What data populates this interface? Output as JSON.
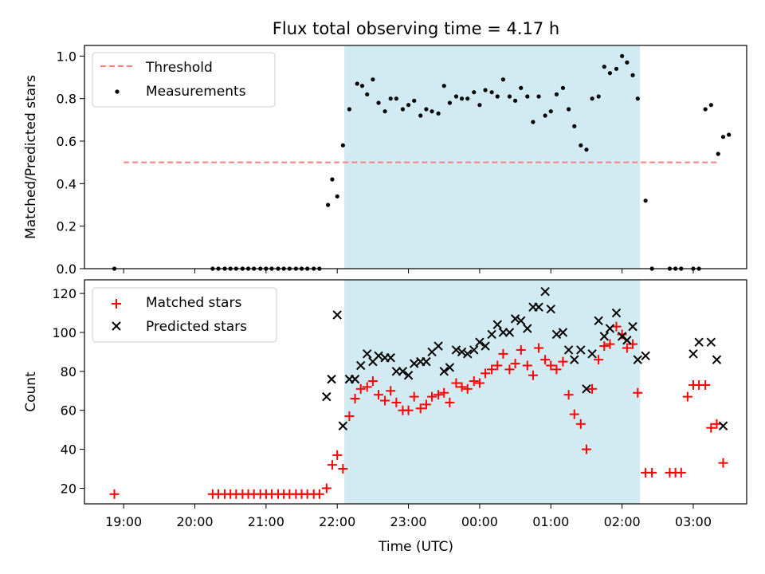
{
  "title": "Flux total observing time = 4.17 h",
  "xlabel": "Time (UTC)",
  "colors": {
    "shade": "#add8e6",
    "threshold": "#ff7f7f",
    "measurements": "#000000",
    "matched": "#ff0000",
    "predicted": "#000000"
  },
  "chart_data": [
    {
      "type": "scatter",
      "ylabel": "Matched/Predicted stars",
      "ylim": [
        0,
        1.05
      ],
      "xlim": [
        18.45,
        27.75
      ],
      "x_ticks": [
        19,
        20,
        21,
        22,
        23,
        24,
        25,
        26,
        27
      ],
      "y_ticks": [
        0.0,
        0.2,
        0.4,
        0.6,
        0.8,
        1.0
      ],
      "y_tick_labels": [
        "0.0",
        "0.2",
        "0.4",
        "0.6",
        "0.8",
        "1.0"
      ],
      "shaded_region": [
        22.1,
        26.25
      ],
      "legend": {
        "position": "top-left",
        "threshold_label": "Threshold",
        "measurements_label": "Measurements"
      },
      "threshold": {
        "value": 0.5,
        "x": [
          19.0,
          27.35
        ]
      },
      "series": [
        {
          "name": "Measurements",
          "points": [
            [
              18.87,
              0.0
            ],
            [
              20.25,
              0.0
            ],
            [
              20.33,
              0.0
            ],
            [
              20.42,
              0.0
            ],
            [
              20.5,
              0.0
            ],
            [
              20.58,
              0.0
            ],
            [
              20.67,
              0.0
            ],
            [
              20.75,
              0.0
            ],
            [
              20.83,
              0.0
            ],
            [
              20.92,
              0.0
            ],
            [
              21.0,
              0.0
            ],
            [
              21.08,
              0.0
            ],
            [
              21.17,
              0.0
            ],
            [
              21.25,
              0.0
            ],
            [
              21.33,
              0.0
            ],
            [
              21.42,
              0.0
            ],
            [
              21.5,
              0.0
            ],
            [
              21.58,
              0.0
            ],
            [
              21.67,
              0.0
            ],
            [
              21.75,
              0.0
            ],
            [
              21.87,
              0.3
            ],
            [
              21.93,
              0.42
            ],
            [
              22.0,
              0.34
            ],
            [
              22.08,
              0.58
            ],
            [
              22.17,
              0.75
            ],
            [
              22.28,
              0.87
            ],
            [
              22.35,
              0.86
            ],
            [
              22.42,
              0.82
            ],
            [
              22.5,
              0.89
            ],
            [
              22.58,
              0.78
            ],
            [
              22.67,
              0.74
            ],
            [
              22.75,
              0.8
            ],
            [
              22.83,
              0.8
            ],
            [
              22.92,
              0.75
            ],
            [
              23.0,
              0.77
            ],
            [
              23.08,
              0.79
            ],
            [
              23.17,
              0.72
            ],
            [
              23.25,
              0.75
            ],
            [
              23.33,
              0.74
            ],
            [
              23.42,
              0.73
            ],
            [
              23.5,
              0.86
            ],
            [
              23.58,
              0.78
            ],
            [
              23.67,
              0.81
            ],
            [
              23.75,
              0.8
            ],
            [
              23.83,
              0.8
            ],
            [
              23.92,
              0.83
            ],
            [
              24.0,
              0.77
            ],
            [
              24.08,
              0.84
            ],
            [
              24.17,
              0.83
            ],
            [
              24.25,
              0.81
            ],
            [
              24.33,
              0.89
            ],
            [
              24.42,
              0.81
            ],
            [
              24.5,
              0.79
            ],
            [
              24.58,
              0.85
            ],
            [
              24.67,
              0.81
            ],
            [
              24.75,
              0.69
            ],
            [
              24.83,
              0.81
            ],
            [
              24.92,
              0.72
            ],
            [
              25.0,
              0.74
            ],
            [
              25.08,
              0.82
            ],
            [
              25.17,
              0.85
            ],
            [
              25.25,
              0.75
            ],
            [
              25.33,
              0.67
            ],
            [
              25.42,
              0.58
            ],
            [
              25.5,
              0.56
            ],
            [
              25.58,
              0.8
            ],
            [
              25.67,
              0.81
            ],
            [
              25.75,
              0.95
            ],
            [
              25.83,
              0.92
            ],
            [
              25.92,
              0.94
            ],
            [
              26.0,
              1.0
            ],
            [
              26.07,
              0.97
            ],
            [
              26.15,
              0.91
            ],
            [
              26.22,
              0.8
            ],
            [
              26.33,
              0.32
            ],
            [
              26.42,
              0.0
            ],
            [
              26.67,
              0.0
            ],
            [
              26.75,
              0.0
            ],
            [
              26.83,
              0.0
            ],
            [
              27.0,
              0.0
            ],
            [
              27.08,
              0.0
            ],
            [
              27.17,
              0.75
            ],
            [
              27.25,
              0.77
            ],
            [
              27.35,
              0.54
            ],
            [
              27.42,
              0.62
            ],
            [
              27.5,
              0.63
            ]
          ]
        }
      ]
    },
    {
      "type": "scatter",
      "ylabel": "Count",
      "ylim": [
        12,
        127
      ],
      "xlim": [
        18.45,
        27.75
      ],
      "x_ticks": [
        19,
        20,
        21,
        22,
        23,
        24,
        25,
        26,
        27
      ],
      "x_tick_labels": [
        "19:00",
        "20:00",
        "21:00",
        "22:00",
        "23:00",
        "00:00",
        "01:00",
        "02:00",
        "03:00"
      ],
      "y_ticks": [
        20,
        40,
        60,
        80,
        100,
        120
      ],
      "y_tick_labels": [
        "20",
        "40",
        "60",
        "80",
        "100",
        "120"
      ],
      "shaded_region": [
        22.1,
        26.25
      ],
      "legend": {
        "position": "top-left",
        "matched_label": "Matched stars",
        "predicted_label": "Predicted stars"
      },
      "series": [
        {
          "name": "Matched stars",
          "marker": "plus",
          "points": [
            [
              18.87,
              17
            ],
            [
              20.25,
              17
            ],
            [
              20.33,
              17
            ],
            [
              20.42,
              17
            ],
            [
              20.5,
              17
            ],
            [
              20.58,
              17
            ],
            [
              20.67,
              17
            ],
            [
              20.75,
              17
            ],
            [
              20.83,
              17
            ],
            [
              20.92,
              17
            ],
            [
              21.0,
              17
            ],
            [
              21.08,
              17
            ],
            [
              21.17,
              17
            ],
            [
              21.25,
              17
            ],
            [
              21.33,
              17
            ],
            [
              21.42,
              17
            ],
            [
              21.5,
              17
            ],
            [
              21.58,
              17
            ],
            [
              21.67,
              17
            ],
            [
              21.75,
              17
            ],
            [
              21.85,
              20
            ],
            [
              21.93,
              32
            ],
            [
              22.0,
              37
            ],
            [
              22.08,
              30
            ],
            [
              22.17,
              57
            ],
            [
              22.25,
              66
            ],
            [
              22.33,
              71
            ],
            [
              22.42,
              72
            ],
            [
              22.5,
              75
            ],
            [
              22.58,
              68
            ],
            [
              22.67,
              65
            ],
            [
              22.75,
              70
            ],
            [
              22.83,
              64
            ],
            [
              22.92,
              60
            ],
            [
              23.0,
              60
            ],
            [
              23.08,
              67
            ],
            [
              23.17,
              61
            ],
            [
              23.25,
              63
            ],
            [
              23.33,
              67
            ],
            [
              23.42,
              68
            ],
            [
              23.5,
              69
            ],
            [
              23.58,
              64
            ],
            [
              23.67,
              74
            ],
            [
              23.75,
              72
            ],
            [
              23.83,
              71
            ],
            [
              23.92,
              75
            ],
            [
              24.0,
              74
            ],
            [
              24.08,
              79
            ],
            [
              24.17,
              81
            ],
            [
              24.25,
              83
            ],
            [
              24.33,
              89
            ],
            [
              24.42,
              81
            ],
            [
              24.5,
              84
            ],
            [
              24.58,
              91
            ],
            [
              24.67,
              83
            ],
            [
              24.75,
              78
            ],
            [
              24.83,
              92
            ],
            [
              24.92,
              86
            ],
            [
              25.0,
              83
            ],
            [
              25.08,
              81
            ],
            [
              25.17,
              85
            ],
            [
              25.25,
              68
            ],
            [
              25.33,
              58
            ],
            [
              25.42,
              53
            ],
            [
              25.5,
              40
            ],
            [
              25.58,
              71
            ],
            [
              25.67,
              86
            ],
            [
              25.75,
              93
            ],
            [
              25.83,
              94
            ],
            [
              25.92,
              103
            ],
            [
              26.0,
              99
            ],
            [
              26.07,
              92
            ],
            [
              26.15,
              94
            ],
            [
              26.22,
              69
            ],
            [
              26.33,
              28
            ],
            [
              26.42,
              28
            ],
            [
              26.67,
              28
            ],
            [
              26.75,
              28
            ],
            [
              26.83,
              28
            ],
            [
              26.92,
              67
            ],
            [
              27.0,
              73
            ],
            [
              27.08,
              73
            ],
            [
              27.17,
              73
            ],
            [
              27.25,
              51
            ],
            [
              27.33,
              53
            ],
            [
              27.42,
              33
            ]
          ]
        },
        {
          "name": "Predicted stars",
          "marker": "x",
          "points": [
            [
              21.85,
              67
            ],
            [
              21.92,
              76
            ],
            [
              22.0,
              109
            ],
            [
              22.08,
              52
            ],
            [
              22.17,
              76
            ],
            [
              22.25,
              76
            ],
            [
              22.33,
              83
            ],
            [
              22.42,
              89
            ],
            [
              22.5,
              85
            ],
            [
              22.58,
              88
            ],
            [
              22.67,
              87
            ],
            [
              22.75,
              87
            ],
            [
              22.83,
              80
            ],
            [
              22.92,
              80
            ],
            [
              23.0,
              78
            ],
            [
              23.08,
              84
            ],
            [
              23.17,
              85
            ],
            [
              23.25,
              85
            ],
            [
              23.33,
              90
            ],
            [
              23.42,
              93
            ],
            [
              23.5,
              80
            ],
            [
              23.58,
              82
            ],
            [
              23.67,
              91
            ],
            [
              23.75,
              90
            ],
            [
              23.83,
              89
            ],
            [
              23.92,
              91
            ],
            [
              24.0,
              95
            ],
            [
              24.08,
              93
            ],
            [
              24.17,
              99
            ],
            [
              24.25,
              104
            ],
            [
              24.33,
              100
            ],
            [
              24.42,
              100
            ],
            [
              24.5,
              107
            ],
            [
              24.58,
              106
            ],
            [
              24.67,
              102
            ],
            [
              24.75,
              113
            ],
            [
              24.83,
              113
            ],
            [
              24.92,
              121
            ],
            [
              25.0,
              112
            ],
            [
              25.08,
              99
            ],
            [
              25.17,
              100
            ],
            [
              25.25,
              91
            ],
            [
              25.33,
              86
            ],
            [
              25.42,
              91
            ],
            [
              25.5,
              71
            ],
            [
              25.58,
              89
            ],
            [
              25.67,
              106
            ],
            [
              25.75,
              98
            ],
            [
              25.83,
              102
            ],
            [
              25.92,
              110
            ],
            [
              26.0,
              98
            ],
            [
              26.07,
              96
            ],
            [
              26.15,
              103
            ],
            [
              26.22,
              86
            ],
            [
              26.33,
              88
            ],
            [
              27.0,
              89
            ],
            [
              27.08,
              95
            ],
            [
              27.25,
              95
            ],
            [
              27.33,
              86
            ],
            [
              27.42,
              52
            ]
          ]
        }
      ]
    }
  ]
}
